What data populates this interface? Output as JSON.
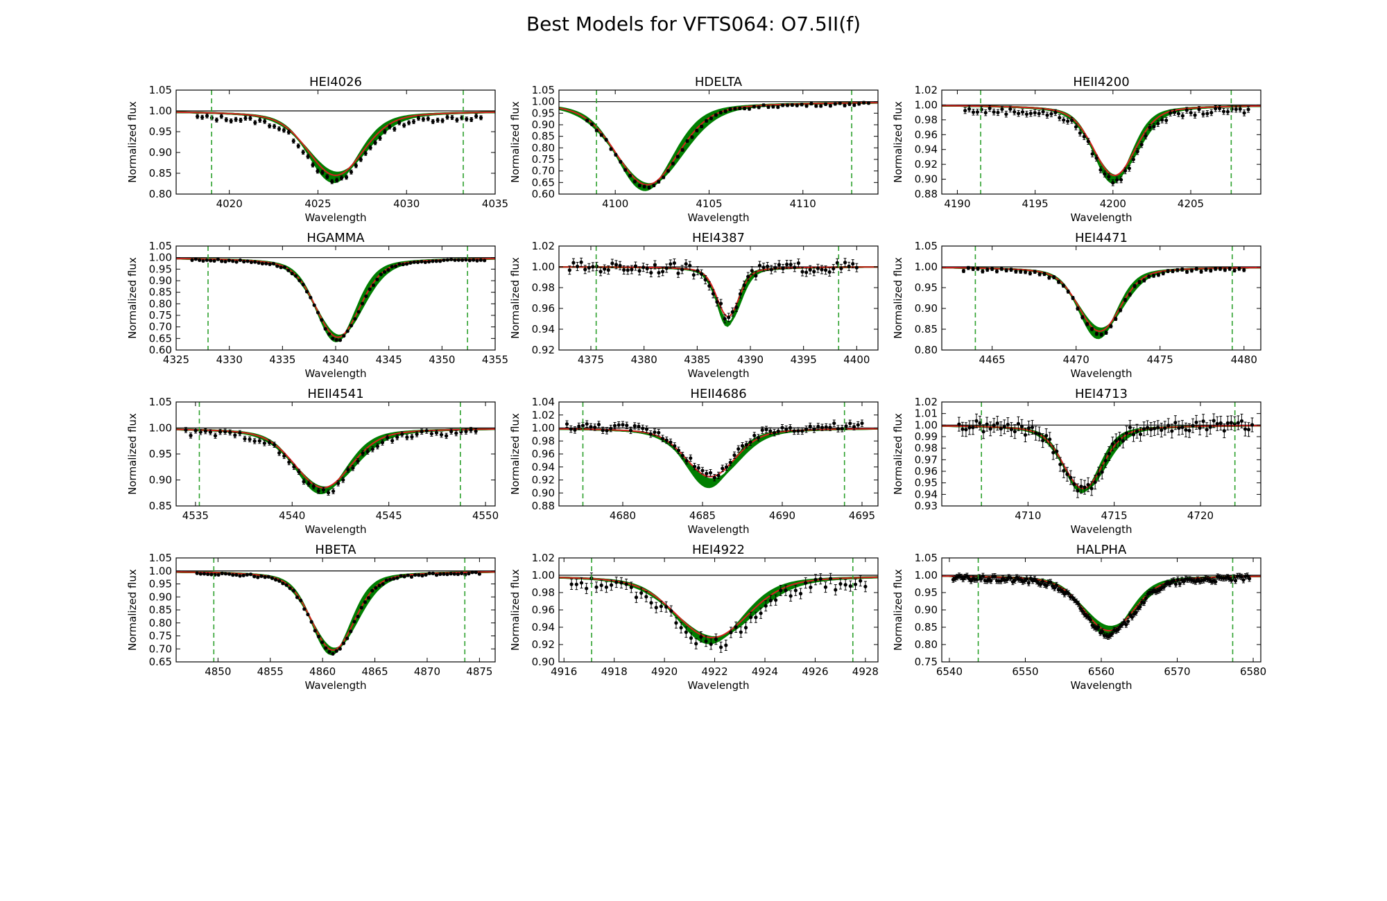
{
  "figure": {
    "title": "Best Models for VFTS064: O7.5II(f)"
  },
  "colors": {
    "model_band": "#007f00",
    "best_fit": "#d62020",
    "observed": "#000000",
    "continuum": "#000000",
    "window_marker": "#2ca02c"
  },
  "chart_data": [
    {
      "type": "line",
      "title": "HEI4026",
      "xlabel": "Wavelength",
      "ylabel": "Normalized flux",
      "xlim": [
        4017,
        4035
      ],
      "ylim": [
        0.8,
        1.05
      ],
      "xticks": [
        4020,
        4025,
        4030,
        4035
      ],
      "yticks": [
        0.8,
        0.85,
        0.9,
        0.95,
        1.0,
        1.05
      ],
      "continuum": 1.0,
      "window": [
        4019.0,
        4033.2
      ],
      "line_center": 4026.0,
      "depth": 0.16,
      "width": 1.5,
      "band_spread": 0.03,
      "best_depth": 0.155,
      "obs_range": [
        4018.2,
        4034.2
      ],
      "obs_points": 60,
      "obs_offset": -0.012,
      "obs_scatter": 0.006,
      "obs_error": 0.005
    },
    {
      "type": "line",
      "title": "HDELTA",
      "xlabel": "Wavelength",
      "ylabel": "Normalized flux",
      "xlim": [
        4097,
        4114
      ],
      "ylim": [
        0.6,
        1.05
      ],
      "xticks": [
        4100,
        4105,
        4110
      ],
      "yticks": [
        0.6,
        0.65,
        0.7,
        0.75,
        0.8,
        0.85,
        0.9,
        0.95,
        1.0,
        1.05
      ],
      "continuum": 1.0,
      "window": [
        4099.0,
        4112.6
      ],
      "line_center": 4101.7,
      "depth": 0.37,
      "width": 1.6,
      "band_spread": 0.015,
      "best_depth": 0.36,
      "obs_range": [
        4098.5,
        4113.5
      ],
      "obs_points": 60,
      "obs_offset": -0.005,
      "obs_scatter": 0.006,
      "obs_error": 0.006
    },
    {
      "type": "line",
      "title": "HEII4200",
      "xlabel": "Wavelength",
      "ylabel": "Normalized flux",
      "xlim": [
        4189,
        4209.5
      ],
      "ylim": [
        0.88,
        1.02
      ],
      "xticks": [
        4190,
        4195,
        4200,
        4205
      ],
      "yticks": [
        0.88,
        0.9,
        0.92,
        0.94,
        0.96,
        0.98,
        1.0,
        1.02
      ],
      "continuum": 1.0,
      "window": [
        4191.5,
        4207.6
      ],
      "line_center": 4200.1,
      "depth": 0.1,
      "width": 1.3,
      "band_spread": 0.02,
      "best_depth": 0.095,
      "obs_range": [
        4190.5,
        4208.7
      ],
      "obs_points": 70,
      "obs_offset": -0.006,
      "obs_scatter": 0.004,
      "obs_error": 0.004
    },
    {
      "type": "line",
      "title": "HGAMMA",
      "xlabel": "Wavelength",
      "ylabel": "Normalized flux",
      "xlim": [
        4325,
        4355
      ],
      "ylim": [
        0.6,
        1.05
      ],
      "xticks": [
        4325,
        4330,
        4335,
        4340,
        4345,
        4350,
        4355
      ],
      "yticks": [
        0.6,
        0.65,
        0.7,
        0.75,
        0.8,
        0.85,
        0.9,
        0.95,
        1.0,
        1.05
      ],
      "continuum": 1.0,
      "window": [
        4328.0,
        4352.4
      ],
      "line_center": 4340.2,
      "depth": 0.35,
      "width": 2.0,
      "band_spread": 0.015,
      "best_depth": 0.345,
      "obs_range": [
        4326.5,
        4354.0
      ],
      "obs_points": 80,
      "obs_offset": -0.004,
      "obs_scatter": 0.005,
      "obs_error": 0.004
    },
    {
      "type": "line",
      "title": "HEI4387",
      "xlabel": "Wavelength",
      "ylabel": "Normalized flux",
      "xlim": [
        4372,
        4402
      ],
      "ylim": [
        0.92,
        1.02
      ],
      "xticks": [
        4375,
        4380,
        4385,
        4390,
        4395,
        4400
      ],
      "yticks": [
        0.92,
        0.94,
        0.96,
        0.98,
        1.0,
        1.02
      ],
      "continuum": 1.0,
      "window": [
        4375.5,
        4398.3
      ],
      "line_center": 4387.9,
      "depth": 0.055,
      "width": 1.0,
      "band_spread": 0.015,
      "best_depth": 0.048,
      "obs_range": [
        4373.0,
        4400.0
      ],
      "obs_points": 75,
      "obs_offset": 0.0,
      "obs_scatter": 0.005,
      "obs_error": 0.004
    },
    {
      "type": "line",
      "title": "HEI4471",
      "xlabel": "Wavelength",
      "ylabel": "Normalized flux",
      "xlim": [
        4462,
        4481
      ],
      "ylim": [
        0.8,
        1.05
      ],
      "xticks": [
        4465,
        4470,
        4475,
        4480
      ],
      "yticks": [
        0.8,
        0.85,
        0.9,
        0.95,
        1.0,
        1.05
      ],
      "continuum": 1.0,
      "window": [
        4464.0,
        4479.3
      ],
      "line_center": 4471.4,
      "depth": 0.16,
      "width": 1.2,
      "band_spread": 0.03,
      "best_depth": 0.155,
      "obs_range": [
        4463.3,
        4480.0
      ],
      "obs_points": 60,
      "obs_offset": -0.004,
      "obs_scatter": 0.004,
      "obs_error": 0.004
    },
    {
      "type": "line",
      "title": "HEII4541",
      "xlabel": "Wavelength",
      "ylabel": "Normalized flux",
      "xlim": [
        4534,
        4550.5
      ],
      "ylim": [
        0.85,
        1.05
      ],
      "xticks": [
        4535,
        4540,
        4545,
        4550
      ],
      "yticks": [
        0.85,
        0.9,
        0.95,
        1.0,
        1.05
      ],
      "continuum": 1.0,
      "window": [
        4535.2,
        4548.7
      ],
      "line_center": 4541.6,
      "depth": 0.12,
      "width": 1.4,
      "band_spread": 0.02,
      "best_depth": 0.115,
      "obs_range": [
        4534.5,
        4549.5
      ],
      "obs_points": 60,
      "obs_offset": -0.006,
      "obs_scatter": 0.006,
      "obs_error": 0.005
    },
    {
      "type": "line",
      "title": "HEII4686",
      "xlabel": "Wavelength",
      "ylabel": "Normalized flux",
      "xlim": [
        4676,
        4696
      ],
      "ylim": [
        0.88,
        1.04
      ],
      "xticks": [
        4680,
        4685,
        4690,
        4695
      ],
      "yticks": [
        0.88,
        0.9,
        0.92,
        0.94,
        0.96,
        0.98,
        1.0,
        1.02,
        1.04
      ],
      "continuum": 1.0,
      "window": [
        4677.5,
        4693.9
      ],
      "line_center": 4685.5,
      "depth": 0.085,
      "width": 1.5,
      "band_spread": 0.03,
      "best_depth": 0.075,
      "obs_range": [
        4676.5,
        4695.0
      ],
      "obs_points": 75,
      "obs_offset": 0.004,
      "obs_scatter": 0.006,
      "obs_error": 0.005
    },
    {
      "type": "line",
      "title": "HEI4713",
      "xlabel": "Wavelength",
      "ylabel": "Normalized flux",
      "xlim": [
        4705,
        4723.5
      ],
      "ylim": [
        0.93,
        1.02
      ],
      "xticks": [
        4710,
        4715,
        4720
      ],
      "yticks": [
        0.93,
        0.94,
        0.95,
        0.96,
        0.97,
        0.98,
        0.99,
        1.0,
        1.01,
        1.02
      ],
      "continuum": 1.0,
      "window": [
        4707.3,
        4722.0
      ],
      "line_center": 4713.2,
      "depth": 0.057,
      "width": 1.1,
      "band_spread": 0.008,
      "best_depth": 0.055,
      "obs_range": [
        4706.0,
        4723.0
      ],
      "obs_points": 85,
      "obs_offset": 0.0,
      "obs_scatter": 0.005,
      "obs_error": 0.006
    },
    {
      "type": "line",
      "title": "HBETA",
      "xlabel": "Wavelength",
      "ylabel": "Normalized flux",
      "xlim": [
        4846,
        4876.5
      ],
      "ylim": [
        0.65,
        1.05
      ],
      "xticks": [
        4850,
        4855,
        4860,
        4865,
        4870,
        4875
      ],
      "yticks": [
        0.65,
        0.7,
        0.75,
        0.8,
        0.85,
        0.9,
        0.95,
        1.0,
        1.05
      ],
      "continuum": 1.0,
      "window": [
        4849.6,
        4873.6
      ],
      "line_center": 4861.0,
      "depth": 0.31,
      "width": 2.0,
      "band_spread": 0.015,
      "best_depth": 0.305,
      "obs_range": [
        4848.0,
        4875.0
      ],
      "obs_points": 80,
      "obs_offset": -0.004,
      "obs_scatter": 0.005,
      "obs_error": 0.004
    },
    {
      "type": "line",
      "title": "HEI4922",
      "xlabel": "Wavelength",
      "ylabel": "Normalized flux",
      "xlim": [
        4915.8,
        4928.5
      ],
      "ylim": [
        0.9,
        1.02
      ],
      "xticks": [
        4916,
        4918,
        4920,
        4922,
        4924,
        4926,
        4928
      ],
      "yticks": [
        0.9,
        0.92,
        0.94,
        0.96,
        0.98,
        1.0,
        1.02
      ],
      "continuum": 1.0,
      "window": [
        4917.1,
        4927.5
      ],
      "line_center": 4921.9,
      "depth": 0.075,
      "width": 1.4,
      "band_spread": 0.02,
      "best_depth": 0.072,
      "obs_range": [
        4916.3,
        4928.0
      ],
      "obs_points": 60,
      "obs_offset": -0.006,
      "obs_scatter": 0.007,
      "obs_error": 0.006
    },
    {
      "type": "line",
      "title": "HALPHA",
      "xlabel": "Wavelength",
      "ylabel": "Normalized flux",
      "xlim": [
        6539,
        6581
      ],
      "ylim": [
        0.75,
        1.05
      ],
      "xticks": [
        6540,
        6550,
        6560,
        6570,
        6580
      ],
      "yticks": [
        0.75,
        0.8,
        0.85,
        0.9,
        0.95,
        1.0,
        1.05
      ],
      "continuum": 1.0,
      "window": [
        6543.8,
        6577.3
      ],
      "line_center": 6561.0,
      "depth": 0.16,
      "width": 3.2,
      "band_spread": 0.03,
      "best_depth": 0.16,
      "obs_range": [
        6540.5,
        6579.5
      ],
      "obs_points": 150,
      "obs_offset": -0.006,
      "obs_scatter": 0.008,
      "obs_error": 0.008
    }
  ]
}
